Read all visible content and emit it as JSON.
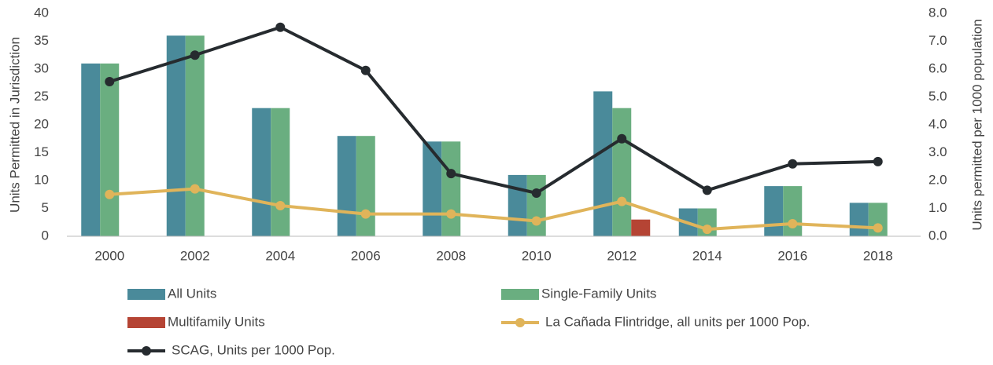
{
  "chart_data": {
    "type": "bar-line",
    "categories": [
      "2000",
      "2002",
      "2004",
      "2006",
      "2008",
      "2010",
      "2012",
      "2014",
      "2016",
      "2018"
    ],
    "ylabel": "Units Permitted in Jurisdiction",
    "y2label": "Units permitted per 1000 population",
    "ylim": [
      0,
      40
    ],
    "yticks": [
      0,
      5,
      10,
      15,
      20,
      25,
      30,
      35,
      40
    ],
    "y2lim": [
      0,
      8
    ],
    "y2ticks": [
      {
        "value": 0,
        "label": "0.0"
      },
      {
        "value": 1,
        "label": "1.0"
      },
      {
        "value": 2,
        "label": "2.0"
      },
      {
        "value": 3,
        "label": "3.0"
      },
      {
        "value": 4,
        "label": "4.0"
      },
      {
        "value": 5,
        "label": "5.0"
      },
      {
        "value": 6,
        "label": "6.0"
      },
      {
        "value": 7,
        "label": "7.0"
      },
      {
        "value": 8,
        "label": "8.0"
      }
    ],
    "grid": false,
    "legend": "bottom",
    "series": [
      {
        "name": "All Units",
        "kind": "bar",
        "color": "#4a8a9a",
        "values": [
          31,
          36,
          23,
          18,
          17,
          11,
          26,
          5,
          9,
          6
        ]
      },
      {
        "name": "Single-Family Units",
        "kind": "bar",
        "color": "#6aae80",
        "values": [
          31,
          36,
          23,
          18,
          17,
          11,
          23,
          5,
          9,
          6
        ]
      },
      {
        "name": "Multifamily Units",
        "kind": "bar",
        "color": "#b54434",
        "values": [
          0,
          0,
          0,
          0,
          0,
          0,
          3,
          0,
          0,
          0
        ]
      },
      {
        "name": "La Cañada Flintridge, all units per 1000 Pop.",
        "kind": "line",
        "axis": "y2",
        "color": "#e0b45a",
        "values": [
          1.5,
          1.7,
          1.1,
          0.8,
          0.8,
          0.55,
          1.25,
          0.25,
          0.45,
          0.3
        ]
      },
      {
        "name": "SCAG, Units per 1000 Pop.",
        "kind": "line",
        "axis": "y2",
        "color": "#262b2f",
        "values": [
          5.55,
          6.5,
          7.5,
          5.95,
          2.25,
          1.55,
          3.5,
          1.65,
          2.6,
          2.68
        ]
      }
    ]
  }
}
